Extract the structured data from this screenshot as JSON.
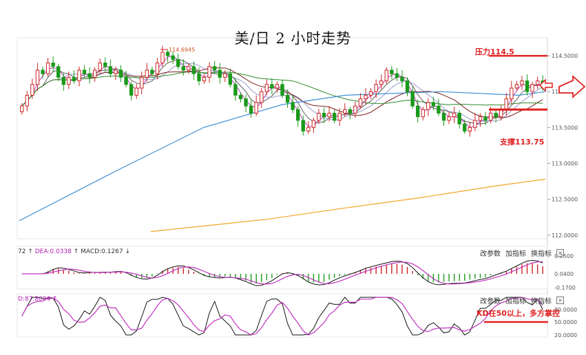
{
  "title": "美/日 2 小时走势",
  "annotations": {
    "resistance": "压力114.5",
    "support": "支撑113.75",
    "kd_note": "KD在50以上，多方掌控",
    "high_marker": "114.6945"
  },
  "macd_pane": {
    "label_prefix": "72 ↑",
    "dea": "DEA:0.0338",
    "macd": "↑ MACD:0.1267 ↓"
  },
  "kd_pane": {
    "label": "D:87.8004 ↑"
  },
  "toolbar": {
    "params": "改参数",
    "add_indicator": "加指标",
    "switch_indicator": "换指标",
    "close": "×"
  },
  "colors": {
    "up": "#cc2222",
    "down": "#1a9a1a",
    "ma_blue": "#3b8fd6",
    "ma_orange": "#f2a624",
    "ma_green": "#2b8a2b",
    "ma_brown": "#7a1c1c",
    "accent_red": "#e02020"
  },
  "chart_data": {
    "type": "candlestick",
    "title": "美/日 2 小时走势",
    "y_ticks": [
      "114.5000",
      "114.0000",
      "113.5000",
      "113.0000",
      "112.5000",
      "112.0000"
    ],
    "ylim": [
      111.95,
      114.75
    ],
    "resistance": 114.5,
    "support": 113.75,
    "close": [
      113.8,
      113.95,
      114.1,
      114.3,
      114.25,
      114.4,
      114.35,
      114.2,
      114.1,
      114.2,
      114.15,
      114.3,
      114.25,
      114.2,
      114.3,
      114.4,
      114.35,
      114.25,
      114.3,
      114.2,
      114.1,
      113.95,
      114.05,
      114.2,
      114.3,
      114.25,
      114.4,
      114.55,
      114.5,
      114.45,
      114.35,
      114.3,
      114.35,
      114.25,
      114.15,
      114.2,
      114.35,
      114.3,
      114.2,
      114.25,
      114.1,
      113.95,
      113.9,
      113.8,
      113.7,
      113.85,
      114.0,
      114.1,
      114.05,
      114.1,
      113.95,
      113.85,
      113.75,
      113.6,
      113.45,
      113.5,
      113.6,
      113.7,
      113.65,
      113.7,
      113.6,
      113.7,
      113.75,
      113.7,
      113.8,
      113.9,
      113.95,
      114.0,
      114.1,
      114.15,
      114.3,
      114.25,
      114.2,
      114.15,
      114.0,
      113.8,
      113.65,
      113.75,
      113.85,
      113.8,
      113.7,
      113.6,
      113.65,
      113.7,
      113.55,
      113.45,
      113.5,
      113.6,
      113.65,
      113.6,
      113.7,
      113.65,
      113.75,
      113.9,
      114.05,
      114.1,
      114.15,
      114.0,
      114.1,
      114.15,
      114.05
    ],
    "ma_slow_orange": [
      [
        25,
        112.05
      ],
      [
        47,
        112.22
      ],
      [
        62,
        112.38
      ],
      [
        76,
        112.52
      ],
      [
        90,
        112.68
      ],
      [
        100,
        112.78
      ]
    ],
    "ma_blue": [
      [
        0,
        112.2
      ],
      [
        18,
        112.88
      ],
      [
        35,
        113.5
      ],
      [
        50,
        113.82
      ],
      [
        62,
        113.95
      ],
      [
        80,
        114.0
      ],
      [
        95,
        113.95
      ],
      [
        100,
        114.0
      ]
    ],
    "macd_yticks": [
      "0.2500",
      "0.0400",
      "-0.1700"
    ],
    "kd_yticks": [
      "80.0000",
      "50.0000",
      "20.0000"
    ]
  }
}
